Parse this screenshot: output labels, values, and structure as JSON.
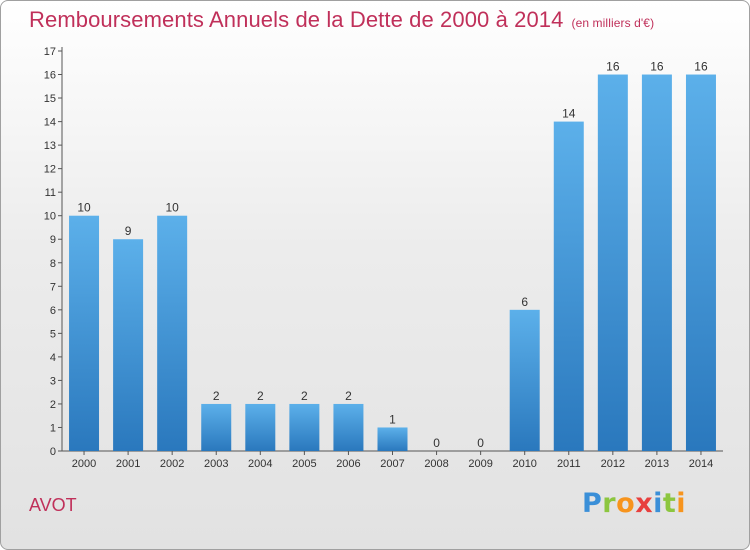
{
  "header": {
    "title": "Remboursements Annuels de la Dette de 2000 à 2014",
    "subtitle": "(en milliers d'€)"
  },
  "footer": {
    "commune": "AVOT",
    "logo_letters": [
      {
        "ch": "P",
        "color": "#3a8fd8"
      },
      {
        "ch": "r",
        "color": "#8cc63f"
      },
      {
        "ch": "o",
        "color": "#f7941d"
      },
      {
        "ch": "x",
        "color": "#e8403e"
      },
      {
        "ch": "i",
        "color": "#3a8fd8"
      },
      {
        "ch": "t",
        "color": "#8cc63f"
      },
      {
        "ch": "i",
        "color": "#f7941d"
      }
    ]
  },
  "chart_data": {
    "type": "bar",
    "title": "Remboursements Annuels de la Dette de 2000 à 2014",
    "subtitle": "(en milliers d'€)",
    "categories": [
      "2000",
      "2001",
      "2002",
      "2003",
      "2004",
      "2005",
      "2006",
      "2007",
      "2008",
      "2009",
      "2010",
      "2011",
      "2012",
      "2013",
      "2014"
    ],
    "values": [
      10,
      9,
      10,
      2,
      2,
      2,
      2,
      1,
      0,
      0,
      6,
      14,
      16,
      16,
      16
    ],
    "data_labels": [
      "10",
      "9",
      "10",
      "2",
      "2",
      "2",
      "2",
      "1",
      "0",
      "0",
      "6",
      "14",
      "16",
      "16",
      "16"
    ],
    "ylim": [
      0,
      17
    ],
    "yticks": [
      "0",
      "1",
      "2",
      "3",
      "4",
      "5",
      "6",
      "7",
      "8",
      "9",
      "10",
      "11",
      "12",
      "13",
      "14",
      "15",
      "16",
      "17"
    ],
    "grid": false,
    "bar_color": "#4da0de",
    "bar_color_dark": "#2a78bd",
    "xlabel": "",
    "ylabel": ""
  }
}
